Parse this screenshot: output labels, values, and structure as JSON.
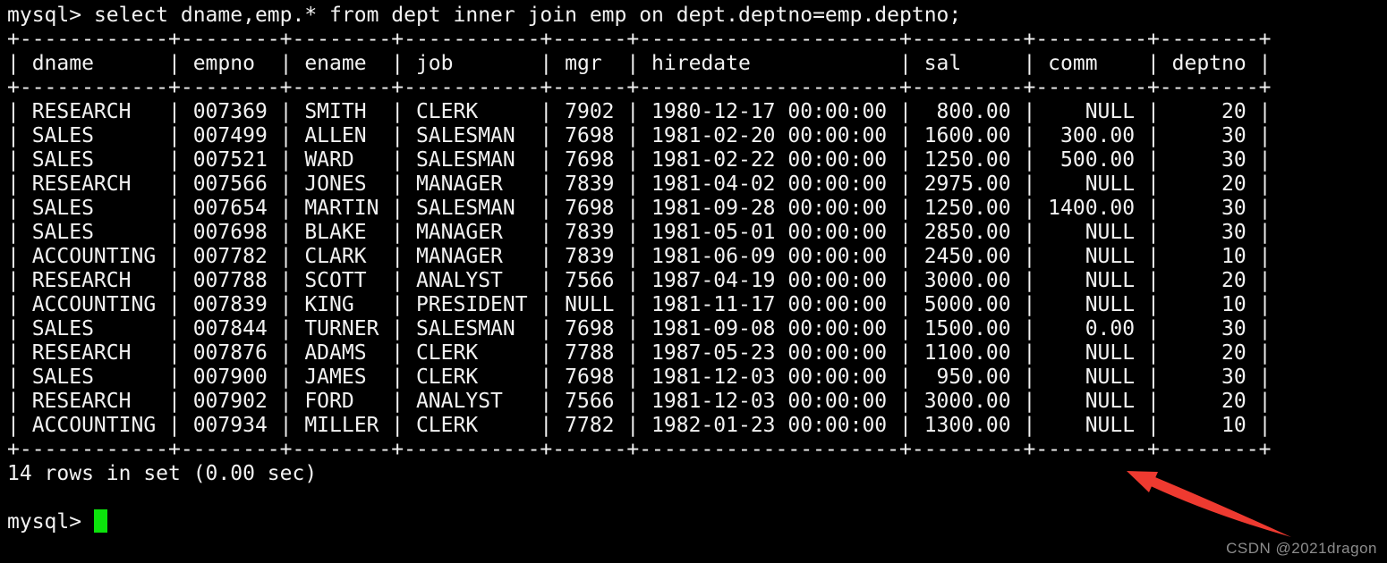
{
  "terminal": {
    "prompt": "mysql>",
    "query": "select dname,emp.* from dept inner join emp on dept.deptno=emp.deptno;",
    "summary": "14 rows in set (0.00 sec)"
  },
  "result_table": {
    "columns": [
      {
        "label": "dname",
        "width": 12,
        "align": "left"
      },
      {
        "label": "empno",
        "width": 8,
        "align": "right"
      },
      {
        "label": "ename",
        "width": 8,
        "align": "left"
      },
      {
        "label": "job",
        "width": 11,
        "align": "left"
      },
      {
        "label": "mgr",
        "width": 6,
        "align": "right"
      },
      {
        "label": "hiredate",
        "width": 21,
        "align": "left"
      },
      {
        "label": "sal",
        "width": 9,
        "align": "right"
      },
      {
        "label": "comm",
        "width": 9,
        "align": "right"
      },
      {
        "label": "deptno",
        "width": 8,
        "align": "right"
      }
    ],
    "rows": [
      [
        "RESEARCH",
        "007369",
        "SMITH",
        "CLERK",
        "7902",
        "1980-12-17 00:00:00",
        "800.00",
        "NULL",
        "20"
      ],
      [
        "SALES",
        "007499",
        "ALLEN",
        "SALESMAN",
        "7698",
        "1981-02-20 00:00:00",
        "1600.00",
        "300.00",
        "30"
      ],
      [
        "SALES",
        "007521",
        "WARD",
        "SALESMAN",
        "7698",
        "1981-02-22 00:00:00",
        "1250.00",
        "500.00",
        "30"
      ],
      [
        "RESEARCH",
        "007566",
        "JONES",
        "MANAGER",
        "7839",
        "1981-04-02 00:00:00",
        "2975.00",
        "NULL",
        "20"
      ],
      [
        "SALES",
        "007654",
        "MARTIN",
        "SALESMAN",
        "7698",
        "1981-09-28 00:00:00",
        "1250.00",
        "1400.00",
        "30"
      ],
      [
        "SALES",
        "007698",
        "BLAKE",
        "MANAGER",
        "7839",
        "1981-05-01 00:00:00",
        "2850.00",
        "NULL",
        "30"
      ],
      [
        "ACCOUNTING",
        "007782",
        "CLARK",
        "MANAGER",
        "7839",
        "1981-06-09 00:00:00",
        "2450.00",
        "NULL",
        "10"
      ],
      [
        "RESEARCH",
        "007788",
        "SCOTT",
        "ANALYST",
        "7566",
        "1987-04-19 00:00:00",
        "3000.00",
        "NULL",
        "20"
      ],
      [
        "ACCOUNTING",
        "007839",
        "KING",
        "PRESIDENT",
        "NULL",
        "1981-11-17 00:00:00",
        "5000.00",
        "NULL",
        "10"
      ],
      [
        "SALES",
        "007844",
        "TURNER",
        "SALESMAN",
        "7698",
        "1981-09-08 00:00:00",
        "1500.00",
        "0.00",
        "30"
      ],
      [
        "RESEARCH",
        "007876",
        "ADAMS",
        "CLERK",
        "7788",
        "1987-05-23 00:00:00",
        "1100.00",
        "NULL",
        "20"
      ],
      [
        "SALES",
        "007900",
        "JAMES",
        "CLERK",
        "7698",
        "1981-12-03 00:00:00",
        "950.00",
        "NULL",
        "30"
      ],
      [
        "RESEARCH",
        "007902",
        "FORD",
        "ANALYST",
        "7566",
        "1981-12-03 00:00:00",
        "3000.00",
        "NULL",
        "20"
      ],
      [
        "ACCOUNTING",
        "007934",
        "MILLER",
        "CLERK",
        "7782",
        "1982-01-23 00:00:00",
        "1300.00",
        "NULL",
        "10"
      ]
    ]
  },
  "watermark": {
    "text": "CSDN @2021dragon"
  },
  "colors": {
    "background": "#000000",
    "foreground": "#f2f2f2",
    "cursor_green": "#0ce30c",
    "arrow_red": "#ee3a30",
    "watermark_gray": "#8c8c8c"
  }
}
